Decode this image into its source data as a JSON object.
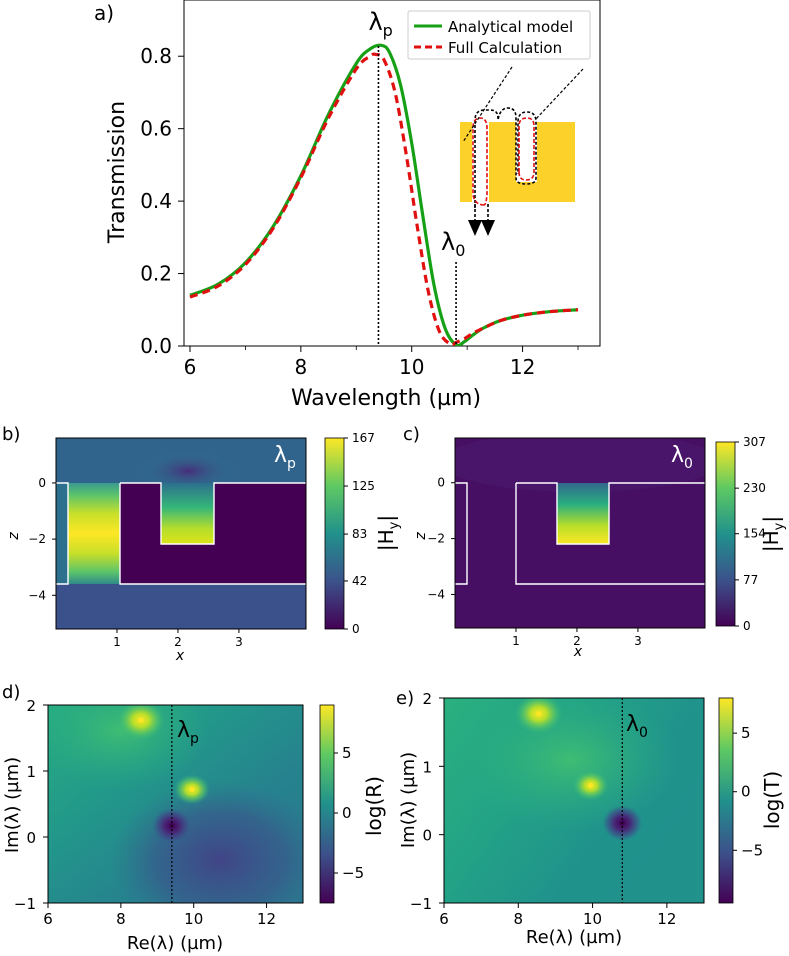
{
  "panels": {
    "a": {
      "label": "a)"
    },
    "b": {
      "label": "b)"
    },
    "c": {
      "label": "c)"
    },
    "d": {
      "label": "d)"
    },
    "e": {
      "label": "e)"
    }
  },
  "colors": {
    "analytical": "#16a016",
    "full": "#e01010",
    "gold": "#fcd12a",
    "black": "#000000"
  },
  "chart_data": [
    {
      "panel": "a",
      "type": "line",
      "xlabel": "Wavelength (µm)",
      "ylabel": "Transmission",
      "xlim": [
        6,
        13
      ],
      "ylim": [
        0,
        0.9
      ],
      "xticks": [
        6,
        8,
        10,
        12
      ],
      "yticks": [
        0.0,
        0.2,
        0.4,
        0.6,
        0.8
      ],
      "ytick_labels": [
        "0.0",
        "0.2",
        "0.4",
        "0.6",
        "0.8"
      ],
      "series": [
        {
          "name": "Analytical model",
          "style": "solid",
          "color": "#16a016",
          "x": [
            6.0,
            6.5,
            7.0,
            7.5,
            8.0,
            8.5,
            9.0,
            9.25,
            9.45,
            9.6,
            9.8,
            10.0,
            10.2,
            10.4,
            10.6,
            10.8,
            10.95,
            11.1,
            11.3,
            11.6,
            12.0,
            12.5,
            13.0
          ],
          "y": [
            0.14,
            0.17,
            0.23,
            0.33,
            0.47,
            0.64,
            0.78,
            0.82,
            0.83,
            0.81,
            0.72,
            0.56,
            0.36,
            0.17,
            0.05,
            0.003,
            0.012,
            0.03,
            0.05,
            0.07,
            0.085,
            0.095,
            0.1
          ]
        },
        {
          "name": "Full Calculation",
          "style": "dashed",
          "color": "#e01010",
          "x": [
            6.0,
            6.5,
            7.0,
            7.5,
            8.0,
            8.5,
            9.0,
            9.25,
            9.35,
            9.5,
            9.7,
            9.9,
            10.1,
            10.3,
            10.5,
            10.7,
            10.8,
            10.95,
            11.1,
            11.3,
            11.6,
            12.0,
            12.5,
            13.0
          ],
          "y": [
            0.135,
            0.165,
            0.225,
            0.325,
            0.465,
            0.63,
            0.765,
            0.8,
            0.805,
            0.79,
            0.7,
            0.53,
            0.33,
            0.15,
            0.04,
            0.005,
            0.01,
            0.02,
            0.035,
            0.05,
            0.07,
            0.085,
            0.095,
            0.1
          ]
        }
      ],
      "annotations": [
        {
          "text": "λp",
          "main": "λ",
          "sub": "p",
          "x": 9.4
        },
        {
          "text": "λ0",
          "main": "λ",
          "sub": "0",
          "x": 10.8
        }
      ]
    },
    {
      "panel": "b",
      "type": "heatmap",
      "xlabel": "x",
      "ylabel": "z",
      "xlim": [
        0,
        4.1
      ],
      "ylim": [
        -5.2,
        1.6
      ],
      "xticks": [
        1,
        2,
        3
      ],
      "yticks": [
        0,
        -2,
        -4
      ],
      "ytick_labels": [
        "0",
        "−2",
        "−4"
      ],
      "colorbar": {
        "label": "|Hy|",
        "main": "|H",
        "sub": "y",
        "end": "|",
        "ticks": [
          0,
          42,
          83,
          125,
          167
        ],
        "min": 0,
        "max": 167
      },
      "annotation": {
        "main": "λ",
        "sub": "p"
      }
    },
    {
      "panel": "c",
      "type": "heatmap",
      "xlabel": "x",
      "ylabel": "z",
      "xlim": [
        0,
        4.1
      ],
      "ylim": [
        -5.2,
        1.6
      ],
      "xticks": [
        1,
        2,
        3
      ],
      "yticks": [
        0,
        -2,
        -4
      ],
      "ytick_labels": [
        "0",
        "−2",
        "−4"
      ],
      "colorbar": {
        "label": "|Hy|",
        "main": "|H",
        "sub": "y",
        "end": "|",
        "ticks": [
          0,
          77,
          154,
          230,
          307
        ],
        "min": 0,
        "max": 307
      },
      "annotation": {
        "main": "λ",
        "sub": "0"
      }
    },
    {
      "panel": "d",
      "type": "heatmap",
      "xlabel": "Re(λ) (µm)",
      "ylabel": "Im(λ) (µm)",
      "xlim": [
        6,
        13
      ],
      "ylim": [
        -1,
        2
      ],
      "xticks": [
        6,
        8,
        10,
        12
      ],
      "yticks": [
        -1,
        0,
        1,
        2
      ],
      "ytick_labels": [
        "−1",
        "0",
        "1",
        "2"
      ],
      "colorbar": {
        "label": "log(R)",
        "ticks": [
          -5,
          0,
          5
        ],
        "tick_labels": [
          "−5",
          "0",
          "5"
        ],
        "min": -7.5,
        "max": 9
      },
      "poles": [
        {
          "x": 8.55,
          "y": 1.77
        },
        {
          "x": 9.95,
          "y": 0.72
        }
      ],
      "zeros": [
        {
          "x": 9.4,
          "y": 0.17
        }
      ],
      "vline": 9.4,
      "annotation": {
        "main": "λ",
        "sub": "p"
      }
    },
    {
      "panel": "e",
      "type": "heatmap",
      "xlabel": "Re(λ) (µm)",
      "ylabel": "Im(λ) (µm)",
      "xlim": [
        6,
        13
      ],
      "ylim": [
        -1,
        2
      ],
      "xticks": [
        6,
        8,
        10,
        12
      ],
      "yticks": [
        -1,
        0,
        1,
        2
      ],
      "ytick_labels": [
        "−1",
        "0",
        "1",
        "2"
      ],
      "colorbar": {
        "label": "log(T)",
        "ticks": [
          -5,
          0,
          5
        ],
        "tick_labels": [
          "−5",
          "0",
          "5"
        ],
        "min": -9.5,
        "max": 8
      },
      "poles": [
        {
          "x": 8.55,
          "y": 1.77
        },
        {
          "x": 9.95,
          "y": 0.72
        }
      ],
      "zeros": [
        {
          "x": 10.8,
          "y": 0.17
        }
      ],
      "vline": 10.8,
      "annotation": {
        "main": "λ",
        "sub": "0"
      }
    }
  ]
}
